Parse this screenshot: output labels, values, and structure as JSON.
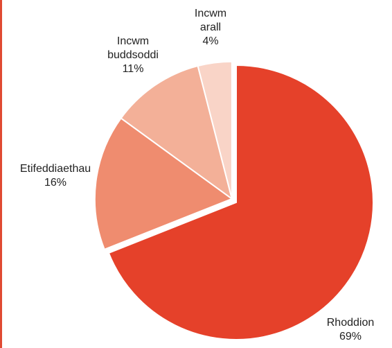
{
  "chart_data": {
    "type": "pie",
    "title": "",
    "legend": "none",
    "slices": [
      {
        "label_lines": [
          "Rhoddion"
        ],
        "pct_text": "69%",
        "value": 69,
        "color": "#e5412a",
        "exploded": false
      },
      {
        "label_lines": [
          "Etifeddiaethau"
        ],
        "pct_text": "16%",
        "value": 16,
        "color": "#ef8c6f",
        "exploded": true
      },
      {
        "label_lines": [
          "Incwm",
          "buddsoddi"
        ],
        "pct_text": "11%",
        "value": 11,
        "color": "#f3b098",
        "exploded": true
      },
      {
        "label_lines": [
          "Incwm",
          "arall"
        ],
        "pct_text": "4%",
        "value": 4,
        "color": "#f9d4c7",
        "exploded": true
      }
    ]
  },
  "frame": {
    "border_color": "#e04a32"
  }
}
